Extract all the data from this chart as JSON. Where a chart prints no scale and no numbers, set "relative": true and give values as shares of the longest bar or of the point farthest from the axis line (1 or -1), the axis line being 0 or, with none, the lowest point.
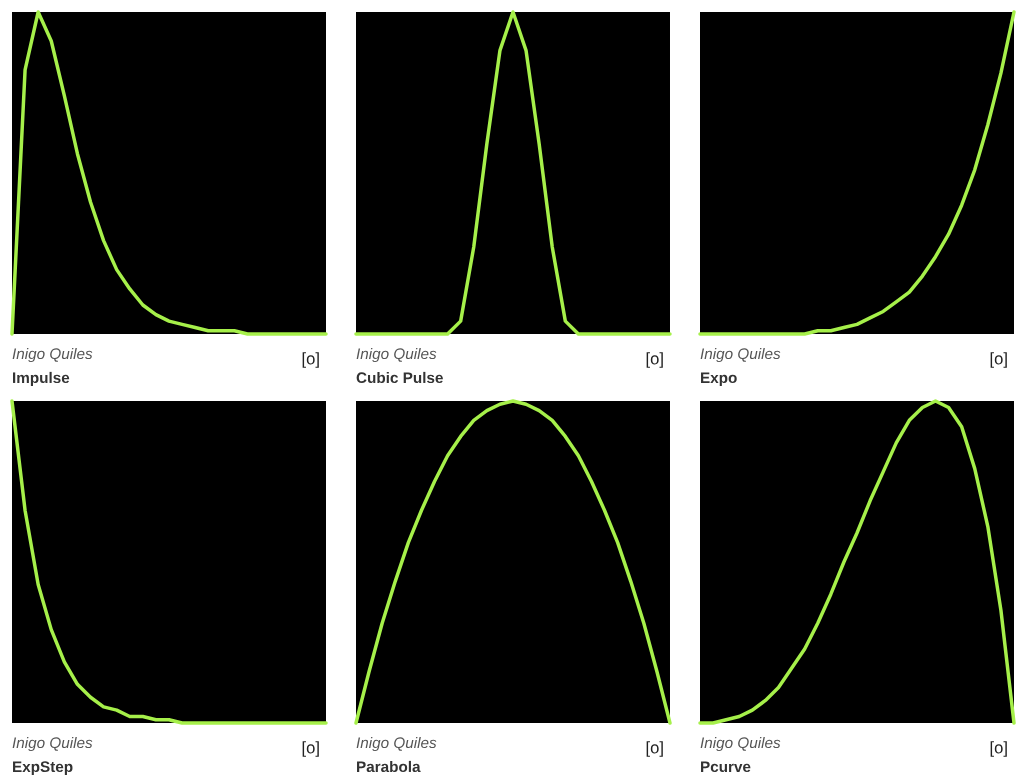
{
  "chart_data": [
    {
      "type": "line",
      "title": "Impulse",
      "annotations": [
        "Inigo Quiles",
        "[o]"
      ],
      "relative": true,
      "categories": [
        null,
        null,
        null,
        null,
        null,
        null,
        null,
        null,
        null,
        null,
        null,
        null,
        null,
        null,
        null,
        null,
        null,
        null,
        null,
        null,
        null,
        null,
        null,
        null,
        null
      ],
      "series": [
        {
          "color": "#a6f04a",
          "values": [
            0,
            0.82,
            1,
            0.91,
            0.74,
            0.56,
            0.41,
            0.29,
            0.2,
            0.14,
            0.09,
            0.06,
            0.04,
            0.03,
            0.02,
            0.01,
            0.01,
            0.01,
            0,
            0,
            0,
            0,
            0,
            0,
            0
          ]
        }
      ]
    },
    {
      "type": "line",
      "title": "Cubic Pulse",
      "annotations": [
        "Inigo Quiles",
        "[o]"
      ],
      "relative": true,
      "categories": [
        null,
        null,
        null,
        null,
        null,
        null,
        null,
        null,
        null,
        null,
        null,
        null,
        null,
        null,
        null,
        null,
        null,
        null,
        null,
        null,
        null,
        null,
        null,
        null,
        null
      ],
      "series": [
        {
          "color": "#a6f04a",
          "values": [
            0,
            0,
            0,
            0,
            0,
            0,
            0,
            0,
            0.04,
            0.27,
            0.59,
            0.88,
            1,
            0.88,
            0.59,
            0.27,
            0.04,
            0,
            0,
            0,
            0,
            0,
            0,
            0,
            0
          ]
        }
      ]
    },
    {
      "type": "line",
      "title": "Expo",
      "annotations": [
        "Inigo Quiles",
        "[o]"
      ],
      "relative": true,
      "categories": [
        null,
        null,
        null,
        null,
        null,
        null,
        null,
        null,
        null,
        null,
        null,
        null,
        null,
        null,
        null,
        null,
        null,
        null,
        null,
        null,
        null,
        null,
        null,
        null,
        null
      ],
      "series": [
        {
          "color": "#a6f04a",
          "values": [
            0,
            0,
            0,
            0,
            0,
            0,
            0,
            0,
            0,
            0.01,
            0.01,
            0.02,
            0.03,
            0.05,
            0.07,
            0.1,
            0.13,
            0.18,
            0.24,
            0.31,
            0.4,
            0.51,
            0.65,
            0.81,
            1
          ]
        }
      ]
    },
    {
      "type": "line",
      "title": "ExpStep",
      "annotations": [
        "Inigo Quiles",
        "[o]"
      ],
      "relative": true,
      "categories": [
        null,
        null,
        null,
        null,
        null,
        null,
        null,
        null,
        null,
        null,
        null,
        null,
        null,
        null,
        null,
        null,
        null,
        null,
        null,
        null,
        null,
        null,
        null,
        null,
        null
      ],
      "series": [
        {
          "color": "#a6f04a",
          "values": [
            1,
            0.66,
            0.43,
            0.29,
            0.19,
            0.12,
            0.08,
            0.05,
            0.04,
            0.02,
            0.02,
            0.01,
            0.01,
            0,
            0,
            0,
            0,
            0,
            0,
            0,
            0,
            0,
            0,
            0,
            0
          ]
        }
      ]
    },
    {
      "type": "line",
      "title": "Parabola",
      "annotations": [
        "Inigo Quiles",
        "[o]"
      ],
      "relative": true,
      "categories": [
        null,
        null,
        null,
        null,
        null,
        null,
        null,
        null,
        null,
        null,
        null,
        null,
        null,
        null,
        null,
        null,
        null,
        null,
        null,
        null,
        null,
        null,
        null,
        null,
        null
      ],
      "series": [
        {
          "color": "#a6f04a",
          "values": [
            0,
            0.16,
            0.31,
            0.44,
            0.56,
            0.66,
            0.75,
            0.83,
            0.89,
            0.94,
            0.97,
            0.99,
            1,
            0.99,
            0.97,
            0.94,
            0.89,
            0.83,
            0.75,
            0.66,
            0.56,
            0.44,
            0.31,
            0.16,
            0
          ]
        }
      ]
    },
    {
      "type": "line",
      "title": "Pcurve",
      "annotations": [
        "Inigo Quiles",
        "[o]"
      ],
      "relative": true,
      "categories": [
        null,
        null,
        null,
        null,
        null,
        null,
        null,
        null,
        null,
        null,
        null,
        null,
        null,
        null,
        null,
        null,
        null,
        null,
        null,
        null,
        null,
        null,
        null,
        null,
        null
      ],
      "series": [
        {
          "color": "#a6f04a",
          "values": [
            0,
            0,
            0.01,
            0.02,
            0.04,
            0.07,
            0.11,
            0.17,
            0.23,
            0.31,
            0.4,
            0.5,
            0.59,
            0.69,
            0.78,
            0.87,
            0.94,
            0.98,
            1,
            0.98,
            0.92,
            0.79,
            0.61,
            0.35,
            0
          ]
        }
      ]
    }
  ]
}
